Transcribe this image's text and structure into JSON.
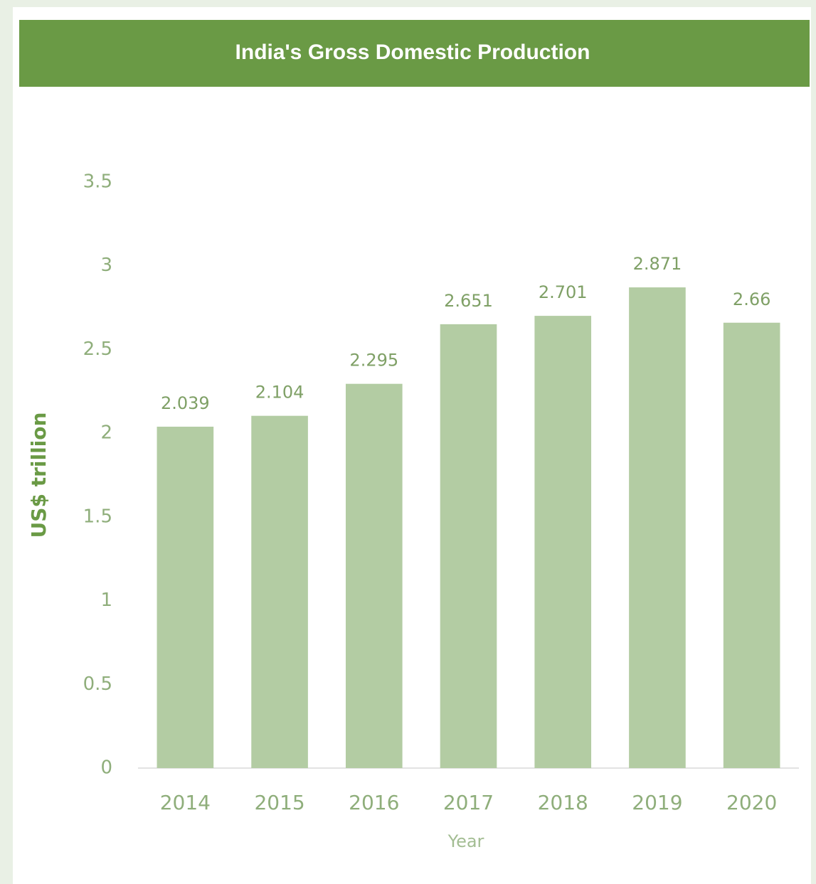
{
  "chart_data": {
    "type": "bar",
    "title": "India's Gross Domestic Production",
    "categories": [
      "2014",
      "2015",
      "2016",
      "2017",
      "2018",
      "2019",
      "2020"
    ],
    "values": [
      2.039,
      2.104,
      2.295,
      2.651,
      2.701,
      2.871,
      2.66
    ],
    "color": "#b3cca3",
    "ylim": [
      0,
      3.5
    ],
    "yticks": [
      0,
      0.5,
      1,
      1.5,
      2,
      2.5,
      3,
      3.5
    ],
    "y_label": "US$ trillion",
    "x_label": "Year",
    "grid": false
  }
}
